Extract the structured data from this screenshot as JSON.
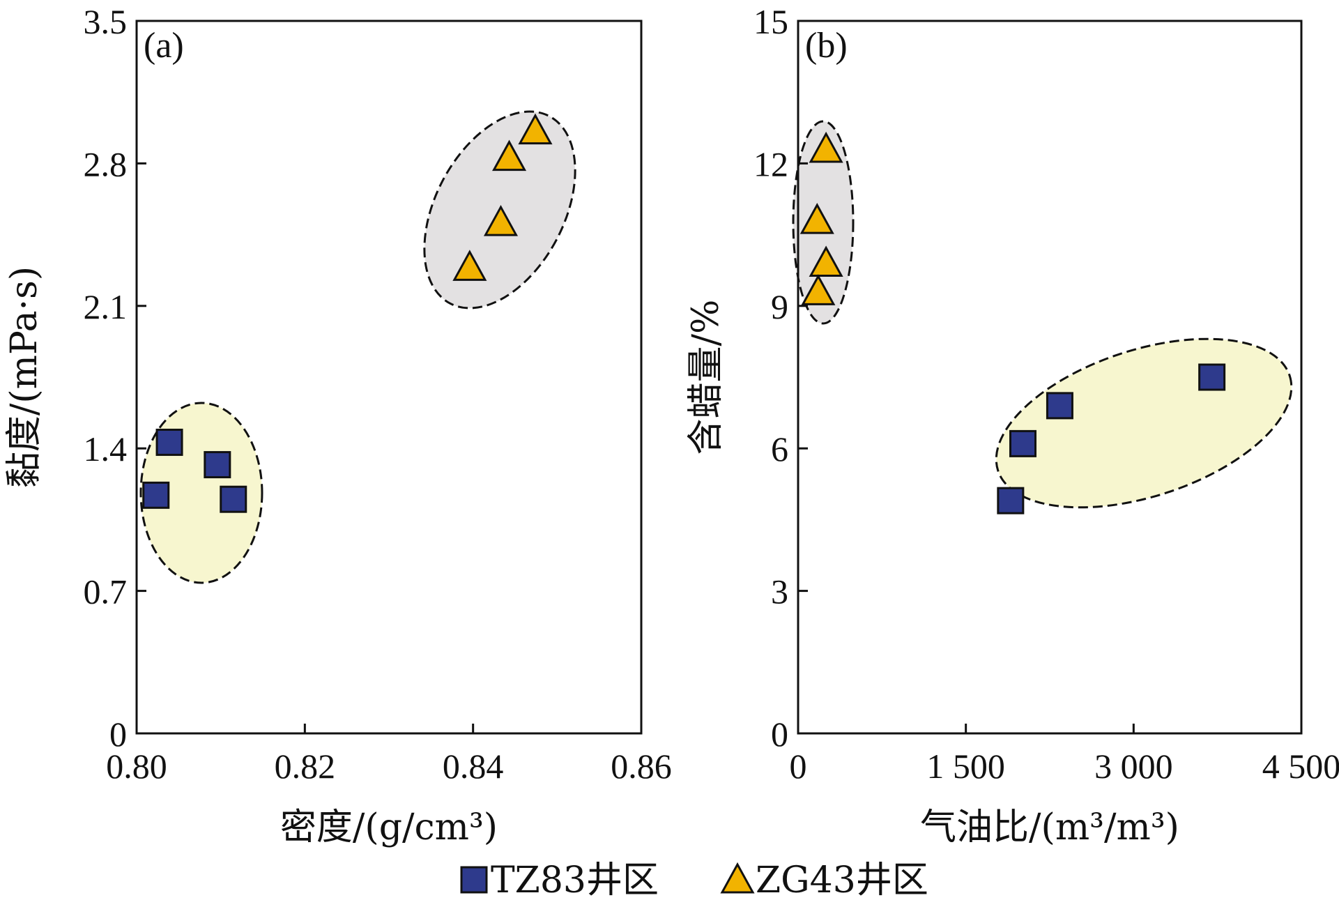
{
  "colors": {
    "tz83_marker": "#2e3a8c",
    "zg43_marker": "#f2b300",
    "tz83_cluster_fill": "#f7f6cf",
    "zg43_cluster_fill": "#e3e1e2",
    "axis": "#111111"
  },
  "legend": {
    "items": [
      {
        "label": "TZ83井区",
        "marker": "square"
      },
      {
        "label": "ZG43井区",
        "marker": "triangle"
      }
    ]
  },
  "chart_data": [
    {
      "type": "scatter",
      "panel_label": "(a)",
      "xlabel": "密度/(g/cm³)",
      "ylabel": "黏度/(mPa·s)",
      "xlim": [
        0.8,
        0.86
      ],
      "ylim": [
        0,
        3.5
      ],
      "xticks": [
        0.8,
        0.82,
        0.84,
        0.86
      ],
      "xtick_labels": [
        "0.80",
        "0.82",
        "0.84",
        "0.86"
      ],
      "yticks": [
        0,
        0.7,
        1.4,
        2.1,
        2.8,
        3.5
      ],
      "ytick_labels": [
        "0",
        "0.7",
        "1.4",
        "2.1",
        "2.8",
        "3.5"
      ],
      "grid": false,
      "series": [
        {
          "name": "TZ83井区",
          "marker": "square",
          "points": [
            [
              0.8039,
              1.43
            ],
            [
              0.8096,
              1.32
            ],
            [
              0.8023,
              1.17
            ],
            [
              0.8115,
              1.15
            ]
          ]
        },
        {
          "name": "ZG43井区",
          "marker": "triangle",
          "points": [
            [
              0.8474,
              2.96
            ],
            [
              0.8443,
              2.83
            ],
            [
              0.8433,
              2.51
            ],
            [
              0.8396,
              2.29
            ]
          ]
        }
      ]
    },
    {
      "type": "scatter",
      "panel_label": "(b)",
      "xlabel": "气油比/(m³/m³)",
      "ylabel": "含蜡量/%",
      "xlim": [
        0,
        4500
      ],
      "ylim": [
        0,
        15
      ],
      "xticks": [
        0,
        1500,
        3000,
        4500
      ],
      "xtick_labels": [
        "0",
        "1 500",
        "3 000",
        "4 500"
      ],
      "yticks": [
        0,
        3,
        6,
        9,
        12,
        15
      ],
      "ytick_labels": [
        "0",
        "3",
        "6",
        "9",
        "12",
        "15"
      ],
      "grid": false,
      "series": [
        {
          "name": "TZ83井区",
          "marker": "square",
          "points": [
            [
              3700,
              7.5
            ],
            [
              2340,
              6.9
            ],
            [
              2010,
              6.1
            ],
            [
              1900,
              4.9
            ]
          ]
        },
        {
          "name": "ZG43井区",
          "marker": "triangle",
          "points": [
            [
              250,
              12.3
            ],
            [
              170,
              10.8
            ],
            [
              250,
              9.9
            ],
            [
              180,
              9.3
            ]
          ]
        }
      ]
    }
  ]
}
